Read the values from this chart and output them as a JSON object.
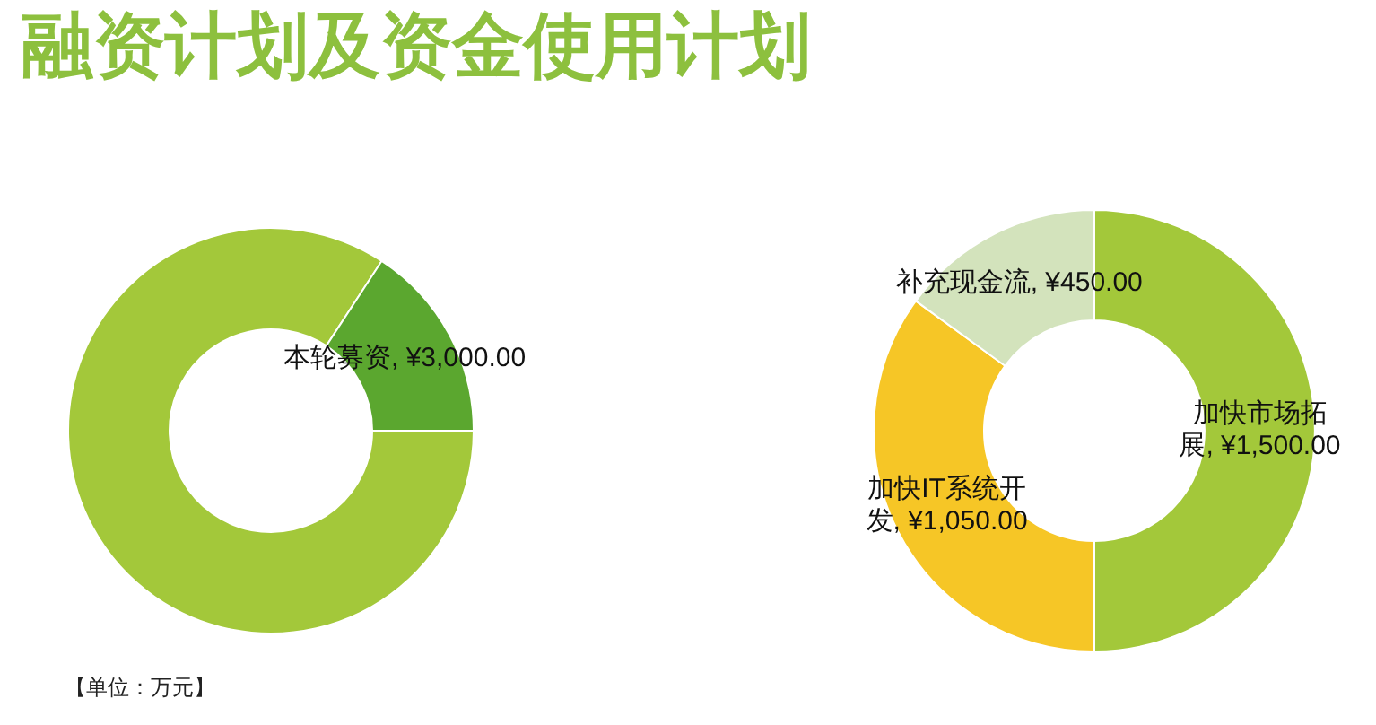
{
  "chart_data": [
    {
      "type": "donut",
      "title": "融资计划及资金使用计划",
      "categories": [
        null,
        "本轮募资"
      ],
      "values": [
        16000,
        3000
      ],
      "colors": [
        "#a3c83a",
        "#5ba72f"
      ],
      "value_labels": [
        null,
        "¥3,000.00"
      ],
      "annotations": [
        "【单位：万元】"
      ]
    },
    {
      "type": "donut",
      "categories": [
        "加快市场拓展",
        "加快IT系统开发",
        "补充现金流"
      ],
      "values": [
        1500,
        1050,
        450
      ],
      "colors": [
        "#a3c83a",
        "#f6c626",
        "#d3e3bc"
      ],
      "value_labels": [
        "¥1,500.00",
        "¥1,050.00",
        "¥450.00"
      ]
    }
  ]
}
